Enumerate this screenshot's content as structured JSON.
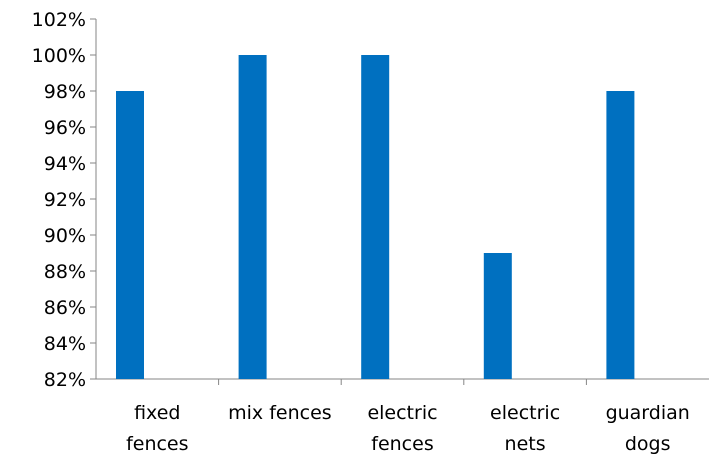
{
  "chart_data": {
    "type": "bar",
    "categories": [
      [
        "fixed",
        "fences"
      ],
      [
        "mix fences"
      ],
      [
        "electric",
        "fences"
      ],
      [
        "electric",
        "nets"
      ],
      [
        "guardian",
        "dogs"
      ]
    ],
    "values": [
      98,
      100,
      100,
      89,
      98
    ],
    "ylim": [
      82,
      102
    ],
    "yticks": [
      "82%",
      "84%",
      "86%",
      "88%",
      "90%",
      "92%",
      "94%",
      "96%",
      "98%",
      "100%",
      "102%"
    ],
    "title": "",
    "xlabel": "",
    "ylabel": "",
    "grid": false,
    "legend": "none",
    "bar_color": "#0070c0",
    "axis_color": "#868686"
  }
}
